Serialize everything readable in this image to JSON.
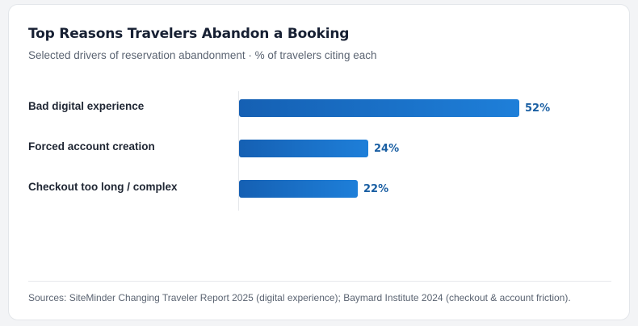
{
  "chart_data": {
    "type": "bar",
    "orientation": "horizontal",
    "title": "Top Reasons Travelers Abandon a Booking",
    "subtitle": "Selected drivers of reservation abandonment · % of travelers citing each",
    "categories": [
      "Bad digital experience",
      "Forced account creation",
      "Checkout too long / complex"
    ],
    "values": [
      52,
      24,
      22
    ],
    "value_labels": [
      "52%",
      "24%",
      "22%"
    ],
    "xlim": [
      0,
      52
    ],
    "grid": false,
    "legend": "none",
    "bar_color": "#1a6fc6",
    "value_label_color": "#1a5fa3"
  },
  "footer": {
    "sources": "Sources: SiteMinder Changing Traveler Report 2025 (digital experience); Baymard Institute 2024 (checkout & account friction)."
  }
}
